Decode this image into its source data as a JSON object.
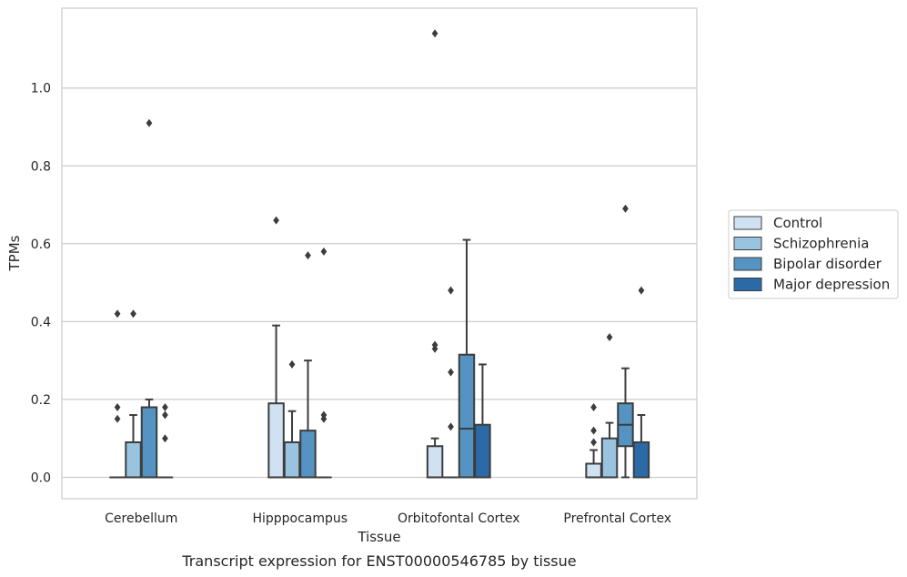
{
  "chart_data": {
    "type": "box",
    "title": "",
    "caption": "Transcript expression for ENST00000546785 by tissue",
    "xlabel": "Tissue",
    "ylabel": "TPMs",
    "ylim": [
      -0.055,
      1.205
    ],
    "yticks": [
      0.0,
      0.2,
      0.4,
      0.6,
      0.8,
      1.0
    ],
    "ytick_labels": [
      "0.0",
      "0.2",
      "0.4",
      "0.6",
      "0.8",
      "1.0"
    ],
    "grid": "horizontal",
    "legend_position": "right",
    "categories": [
      "Cerebellum",
      "Hipppocampus",
      "Orbitofontal Cortex",
      "Prefrontal Cortex"
    ],
    "series": [
      {
        "name": "Control",
        "color": "#d0e1f2",
        "boxes": [
          {
            "q1": 0,
            "median": 0,
            "q3": 0,
            "whisker_low": 0,
            "whisker_high": 0,
            "outliers": [
              0.42,
              0.18,
              0.15
            ]
          },
          {
            "q1": 0,
            "median": 0,
            "q3": 0.19,
            "whisker_low": 0,
            "whisker_high": 0.39,
            "outliers": [
              0.66
            ]
          },
          {
            "q1": 0,
            "median": 0,
            "q3": 0.08,
            "whisker_low": 0,
            "whisker_high": 0.1,
            "outliers": [
              1.14,
              0.34,
              0.33
            ]
          },
          {
            "q1": 0,
            "median": 0,
            "q3": 0.035,
            "whisker_low": 0,
            "whisker_high": 0.07,
            "outliers": [
              0.18,
              0.12,
              0.09
            ]
          }
        ]
      },
      {
        "name": "Schizophrenia",
        "color": "#9ac3e0",
        "boxes": [
          {
            "q1": 0,
            "median": 0,
            "q3": 0.09,
            "whisker_low": 0,
            "whisker_high": 0.16,
            "outliers": [
              0.42
            ]
          },
          {
            "q1": 0,
            "median": 0,
            "q3": 0.09,
            "whisker_low": 0,
            "whisker_high": 0.17,
            "outliers": [
              0.29
            ]
          },
          {
            "q1": 0,
            "median": 0,
            "q3": 0,
            "whisker_low": 0,
            "whisker_high": 0,
            "outliers": [
              0.48,
              0.27,
              0.13
            ]
          },
          {
            "q1": 0,
            "median": 0,
            "q3": 0.1,
            "whisker_low": 0,
            "whisker_high": 0.14,
            "outliers": [
              0.36
            ]
          }
        ]
      },
      {
        "name": "Bipolar disorder",
        "color": "#5593c2",
        "boxes": [
          {
            "q1": 0,
            "median": 0,
            "q3": 0.18,
            "whisker_low": 0,
            "whisker_high": 0.2,
            "outliers": [
              0.91
            ]
          },
          {
            "q1": 0,
            "median": 0,
            "q3": 0.12,
            "whisker_low": 0,
            "whisker_high": 0.3,
            "outliers": [
              0.57
            ]
          },
          {
            "q1": 0,
            "median": 0.125,
            "q3": 0.315,
            "whisker_low": 0,
            "whisker_high": 0.61,
            "outliers": []
          },
          {
            "q1": 0.08,
            "median": 0.135,
            "q3": 0.19,
            "whisker_low": 0,
            "whisker_high": 0.28,
            "outliers": [
              0.69
            ]
          }
        ]
      },
      {
        "name": "Major depression",
        "color": "#2b6aa6",
        "boxes": [
          {
            "q1": 0,
            "median": 0,
            "q3": 0,
            "whisker_low": 0,
            "whisker_high": 0,
            "outliers": [
              0.18,
              0.16,
              0.1
            ]
          },
          {
            "q1": 0,
            "median": 0,
            "q3": 0,
            "whisker_low": 0,
            "whisker_high": 0,
            "outliers": [
              0.58,
              0.16,
              0.15
            ]
          },
          {
            "q1": 0,
            "median": 0,
            "q3": 0.135,
            "whisker_low": 0,
            "whisker_high": 0.29,
            "outliers": []
          },
          {
            "q1": 0,
            "median": 0,
            "q3": 0.09,
            "whisker_low": 0,
            "whisker_high": 0.16,
            "outliers": [
              0.48
            ]
          }
        ]
      }
    ]
  }
}
